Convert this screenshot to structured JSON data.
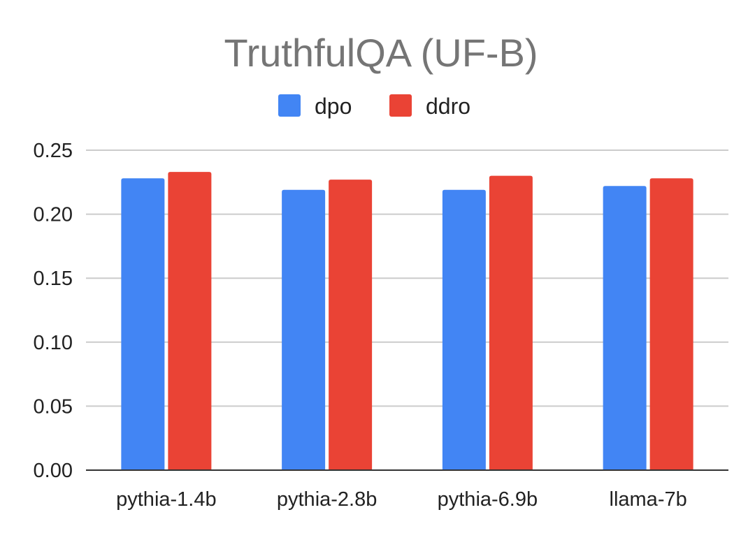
{
  "chart_data": {
    "type": "bar",
    "title": "TruthfulQA (UF-B)",
    "xlabel": "",
    "ylabel": "",
    "categories": [
      "pythia-1.4b",
      "pythia-2.8b",
      "pythia-6.9b",
      "llama-7b"
    ],
    "series": [
      {
        "name": "dpo",
        "color": "#4285f4",
        "values": [
          0.228,
          0.219,
          0.219,
          0.222
        ]
      },
      {
        "name": "ddro",
        "color": "#ea4335",
        "values": [
          0.233,
          0.227,
          0.23,
          0.228
        ]
      }
    ],
    "ylim": [
      0,
      0.25
    ],
    "yticks": [
      "0.00",
      "0.05",
      "0.10",
      "0.15",
      "0.20",
      "0.25"
    ],
    "grid": true,
    "legend_position": "top-center"
  }
}
